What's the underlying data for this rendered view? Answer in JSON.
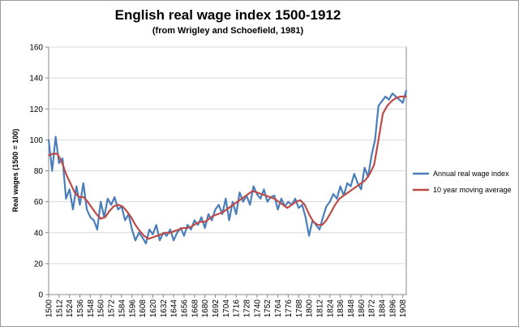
{
  "chart_data": {
    "type": "line",
    "title": "English real wage index 1500-1912",
    "subtitle": "(from Wrigley and Schoefield, 1981)",
    "xlabel": "",
    "ylabel": "Real wages (1500 = 100)",
    "xlim": [
      1500,
      1912
    ],
    "ylim": [
      0,
      160
    ],
    "yticks": [
      0,
      20,
      40,
      60,
      80,
      100,
      120,
      140,
      160
    ],
    "xticks": [
      "1500",
      "1512",
      "1524",
      "1536",
      "1548",
      "1560",
      "1572",
      "1584",
      "1596",
      "1608",
      "1620",
      "1632",
      "1644",
      "1656",
      "1668",
      "1680",
      "1692",
      "1704",
      "1716",
      "1728",
      "1740",
      "1752",
      "1764",
      "1776",
      "1788",
      "1800",
      "1812",
      "1824",
      "1836",
      "1848",
      "1860",
      "1872",
      "1884",
      "1896",
      "1908"
    ],
    "legend_position": "right",
    "series": [
      {
        "name": "Annual real wage index",
        "color": "#4a7ebb",
        "x": [
          1500,
          1504,
          1508,
          1512,
          1516,
          1520,
          1524,
          1528,
          1532,
          1536,
          1540,
          1544,
          1548,
          1552,
          1556,
          1560,
          1564,
          1568,
          1572,
          1576,
          1580,
          1584,
          1588,
          1592,
          1596,
          1600,
          1604,
          1608,
          1612,
          1616,
          1620,
          1624,
          1628,
          1632,
          1636,
          1640,
          1644,
          1648,
          1652,
          1656,
          1660,
          1664,
          1668,
          1672,
          1676,
          1680,
          1684,
          1688,
          1692,
          1696,
          1700,
          1704,
          1708,
          1712,
          1716,
          1720,
          1724,
          1728,
          1732,
          1736,
          1740,
          1744,
          1748,
          1752,
          1756,
          1760,
          1764,
          1768,
          1772,
          1776,
          1780,
          1784,
          1788,
          1792,
          1796,
          1800,
          1804,
          1808,
          1812,
          1816,
          1820,
          1824,
          1828,
          1832,
          1836,
          1840,
          1844,
          1848,
          1852,
          1856,
          1860,
          1864,
          1868,
          1872,
          1876,
          1880,
          1884,
          1888,
          1892,
          1896,
          1900,
          1904,
          1908,
          1912
        ],
        "values": [
          100,
          80,
          102,
          85,
          88,
          62,
          68,
          55,
          70,
          58,
          72,
          55,
          50,
          48,
          42,
          60,
          50,
          62,
          58,
          63,
          55,
          57,
          48,
          52,
          42,
          35,
          40,
          37,
          33,
          42,
          39,
          45,
          35,
          40,
          38,
          42,
          35,
          40,
          43,
          38,
          45,
          42,
          48,
          45,
          50,
          43,
          52,
          48,
          55,
          58,
          52,
          62,
          48,
          60,
          52,
          66,
          60,
          64,
          58,
          70,
          65,
          62,
          68,
          60,
          63,
          64,
          55,
          62,
          57,
          60,
          58,
          62,
          56,
          58,
          50,
          38,
          48,
          45,
          42,
          50,
          57,
          60,
          65,
          62,
          70,
          64,
          72,
          70,
          78,
          72,
          68,
          82,
          76,
          90,
          100,
          122,
          125,
          128,
          126,
          130,
          128,
          126,
          124,
          132
        ]
      },
      {
        "name": "10 year moving average",
        "color": "#be4b48",
        "x": [
          1500,
          1505,
          1510,
          1515,
          1520,
          1525,
          1530,
          1535,
          1540,
          1545,
          1550,
          1555,
          1560,
          1565,
          1570,
          1575,
          1580,
          1585,
          1590,
          1595,
          1600,
          1605,
          1610,
          1615,
          1620,
          1625,
          1630,
          1635,
          1640,
          1645,
          1650,
          1655,
          1660,
          1665,
          1670,
          1675,
          1680,
          1685,
          1690,
          1695,
          1700,
          1705,
          1710,
          1715,
          1720,
          1725,
          1730,
          1735,
          1740,
          1745,
          1750,
          1755,
          1760,
          1765,
          1770,
          1775,
          1780,
          1785,
          1790,
          1795,
          1800,
          1805,
          1810,
          1815,
          1820,
          1825,
          1830,
          1835,
          1840,
          1845,
          1850,
          1855,
          1860,
          1865,
          1870,
          1875,
          1880,
          1885,
          1890,
          1895,
          1900,
          1905,
          1910,
          1912
        ],
        "values": [
          90,
          91,
          91,
          86,
          78,
          72,
          66,
          63,
          63,
          60,
          56,
          52,
          49,
          50,
          54,
          57,
          58,
          57,
          54,
          50,
          45,
          41,
          38,
          36,
          37,
          38,
          39,
          40,
          40,
          41,
          42,
          43,
          43,
          44,
          46,
          47,
          47,
          49,
          51,
          52,
          53,
          55,
          57,
          59,
          61,
          63,
          65,
          67,
          66,
          65,
          64,
          63,
          62,
          60,
          58,
          56,
          58,
          60,
          61,
          58,
          52,
          47,
          45,
          45,
          48,
          53,
          58,
          62,
          64,
          66,
          68,
          70,
          72,
          74,
          78,
          84,
          100,
          117,
          122,
          125,
          127,
          128,
          128,
          128
        ]
      }
    ]
  }
}
